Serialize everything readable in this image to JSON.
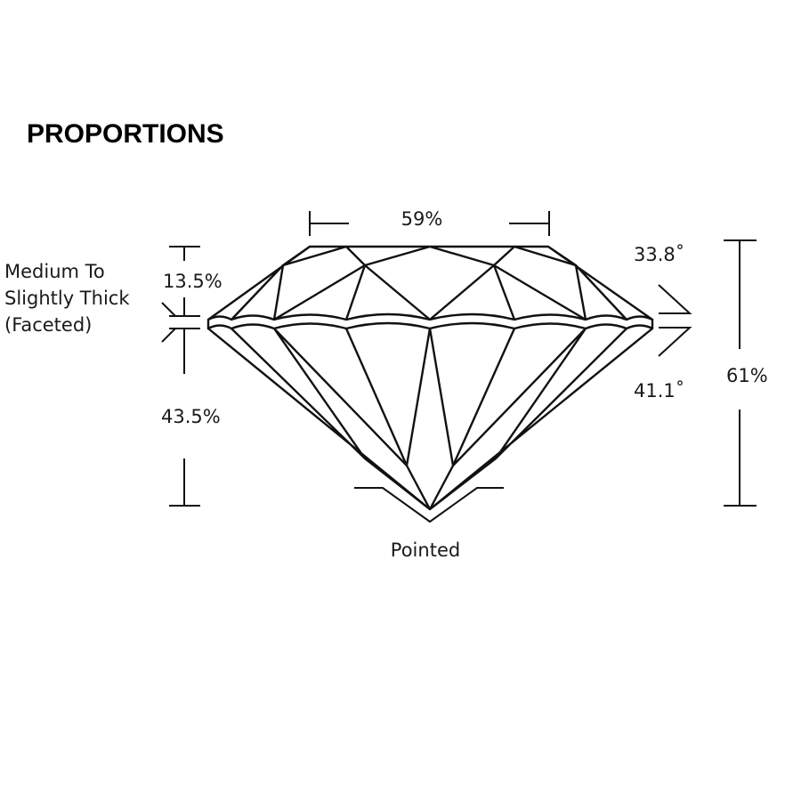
{
  "title": "PROPORTIONS",
  "measurements": {
    "table": "59%",
    "crown_height": "13.5%",
    "pavilion_depth": "43.5%",
    "total_depth": "61%",
    "crown_angle": "33.8˚",
    "pavilion_angle": "41.1˚",
    "girdle": [
      "Medium To",
      "Slightly Thick",
      "(Faceted)"
    ],
    "culet": "Pointed"
  },
  "colors": {
    "line": "#111111",
    "background": "#ffffff"
  }
}
